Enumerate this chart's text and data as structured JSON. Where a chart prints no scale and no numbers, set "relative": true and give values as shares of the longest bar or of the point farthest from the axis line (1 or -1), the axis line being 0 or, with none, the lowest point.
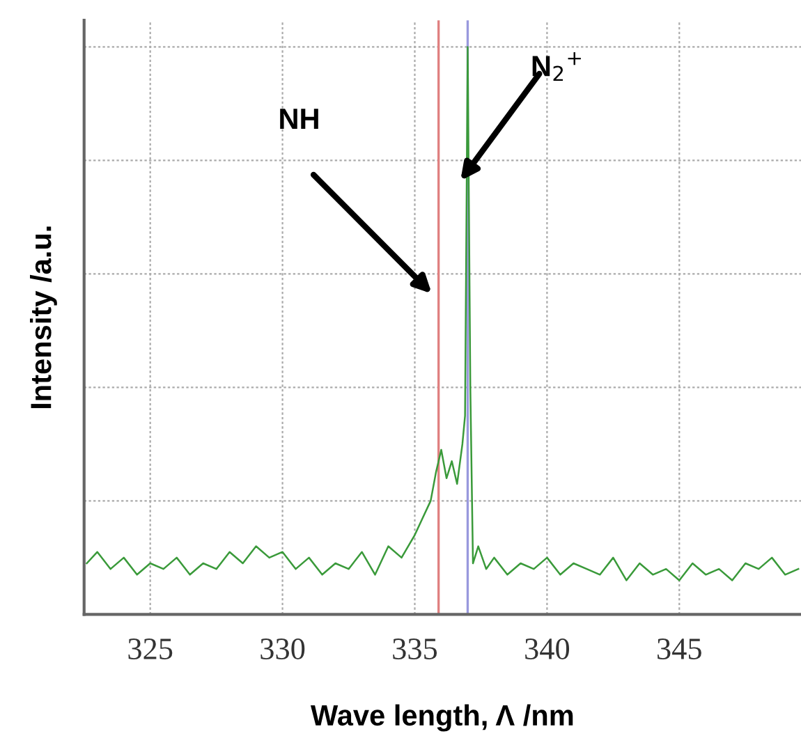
{
  "chart_data": {
    "type": "line",
    "relative": true,
    "xlabel": "Wave length, Λ /nm",
    "ylabel": "Intensity /a.u.",
    "xlim": [
      322.5,
      349.6
    ],
    "xticks": [
      325,
      330,
      335,
      340,
      345
    ],
    "grid": true,
    "tick_labels": "x",
    "line_style": "solid",
    "marker": "none",
    "x": [
      322.6,
      323.0,
      323.5,
      324.0,
      324.5,
      325.0,
      325.5,
      326.0,
      326.5,
      327.0,
      327.5,
      328.0,
      328.5,
      329.0,
      329.5,
      330.0,
      330.5,
      331.0,
      331.5,
      332.0,
      332.5,
      333.0,
      333.5,
      334.0,
      334.5,
      335.0,
      335.3,
      335.6,
      335.8,
      336.0,
      336.2,
      336.4,
      336.6,
      336.8,
      336.9,
      337.0,
      337.1,
      337.2,
      337.4,
      337.7,
      338.0,
      338.5,
      339.0,
      339.5,
      340.0,
      340.5,
      341.0,
      341.5,
      342.0,
      342.5,
      343.0,
      343.5,
      344.0,
      344.5,
      345.0,
      345.5,
      346.0,
      346.5,
      347.0,
      347.5,
      348.0,
      348.5,
      349.0,
      349.5
    ],
    "series": [
      {
        "color": "#3a9a3a",
        "values": [
          0.09,
          0.11,
          0.08,
          0.1,
          0.07,
          0.09,
          0.08,
          0.1,
          0.07,
          0.09,
          0.08,
          0.11,
          0.09,
          0.12,
          0.1,
          0.11,
          0.08,
          0.1,
          0.07,
          0.09,
          0.08,
          0.11,
          0.07,
          0.12,
          0.1,
          0.14,
          0.17,
          0.2,
          0.25,
          0.29,
          0.24,
          0.27,
          0.23,
          0.3,
          0.35,
          1.0,
          0.4,
          0.09,
          0.12,
          0.08,
          0.1,
          0.07,
          0.09,
          0.08,
          0.1,
          0.07,
          0.09,
          0.08,
          0.07,
          0.1,
          0.06,
          0.09,
          0.07,
          0.08,
          0.06,
          0.09,
          0.07,
          0.08,
          0.06,
          0.09,
          0.08,
          0.1,
          0.07,
          0.08
        ]
      }
    ],
    "ref_lines": [
      {
        "axis": "x",
        "value": 335.9,
        "color": "#e08080"
      },
      {
        "axis": "x",
        "value": 337.0,
        "color": "#9999dd"
      }
    ],
    "annotations": [
      "NH",
      "N$_{2}$$^{+}$"
    ]
  }
}
